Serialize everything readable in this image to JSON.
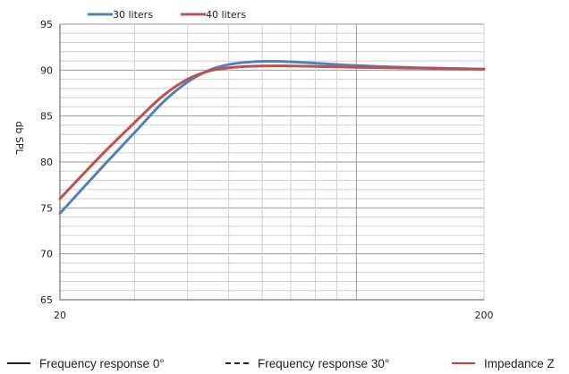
{
  "chart_data": {
    "type": "line",
    "title": "",
    "xlabel": "",
    "ylabel": "db SPL",
    "xscale": "log",
    "xlim": [
      20,
      200
    ],
    "ylim": [
      65,
      95
    ],
    "yticks": [
      65,
      70,
      75,
      80,
      85,
      90,
      95
    ],
    "xticks_labeled": [
      20,
      200
    ],
    "grid": true,
    "legend_position": "top-left",
    "series": [
      {
        "name": "30 liters",
        "color": "#4f81bd",
        "x": [
          20,
          25,
          30,
          35,
          40,
          45,
          50,
          55,
          60,
          70,
          80,
          90,
          100,
          120,
          140,
          160,
          180,
          200
        ],
        "y": [
          74.4,
          79.3,
          83.2,
          86.5,
          88.7,
          90.0,
          90.6,
          90.85,
          90.95,
          90.9,
          90.75,
          90.6,
          90.5,
          90.35,
          90.25,
          90.2,
          90.15,
          90.1
        ]
      },
      {
        "name": "40 liters",
        "color": "#c0504d",
        "x": [
          20,
          25,
          30,
          35,
          40,
          45,
          50,
          55,
          60,
          70,
          80,
          90,
          100,
          120,
          140,
          160,
          180,
          200
        ],
        "y": [
          76.0,
          80.7,
          84.3,
          87.2,
          89.0,
          89.9,
          90.25,
          90.4,
          90.45,
          90.45,
          90.4,
          90.35,
          90.3,
          90.25,
          90.2,
          90.15,
          90.12,
          90.1
        ]
      }
    ]
  },
  "bottom_legend": [
    {
      "label": "Frequency response 0°",
      "color": "#222222",
      "style": "solid"
    },
    {
      "label": "Frequency response 30°",
      "color": "#222222",
      "style": "dashed"
    },
    {
      "label": "Impedance Z",
      "color": "#e03030",
      "style": "solid"
    }
  ]
}
